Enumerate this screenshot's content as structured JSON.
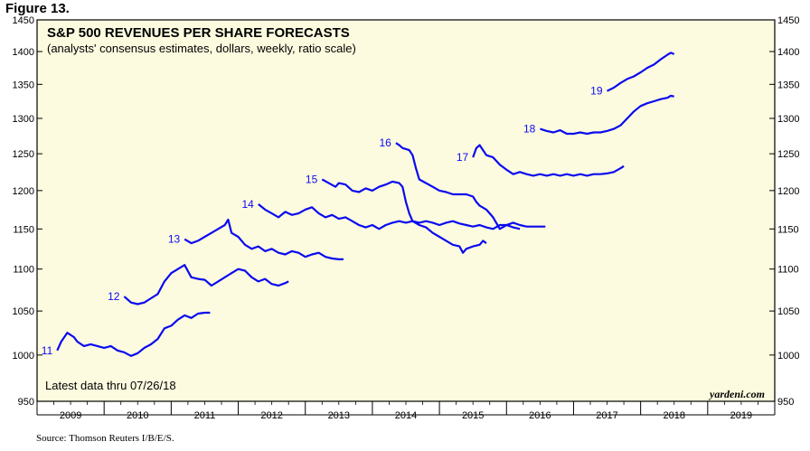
{
  "figure_label": "Figure 13.",
  "source": "Source: Thomson Reuters I/B/E/S.",
  "brand": "yardeni.com",
  "note": "Latest data thru 07/26/18",
  "colors": {
    "plot_background": "#fdfbdf",
    "series": "#0a0aef",
    "axis": "#000000"
  },
  "chart_data": {
    "type": "line",
    "title": "S&P 500 REVENUES PER SHARE FORECASTS",
    "subtitle": "(analysts' consensus estimates, dollars, weekly, ratio scale)",
    "ylim": [
      950,
      1450
    ],
    "y_scale": "log",
    "y_ticks": [
      950,
      1000,
      1050,
      1100,
      1150,
      1200,
      1250,
      1300,
      1350,
      1400,
      1450
    ],
    "x_ticks": [
      "2009",
      "2010",
      "2011",
      "2012",
      "2013",
      "2014",
      "2015",
      "2016",
      "2017",
      "2018",
      "2019"
    ],
    "xlim": [
      2009.0,
      2020.0
    ],
    "grid": false,
    "series": [
      {
        "name": "11",
        "points": [
          [
            2009.3,
            1005
          ],
          [
            2009.36,
            1015
          ],
          [
            2009.45,
            1025
          ],
          [
            2009.55,
            1020
          ],
          [
            2009.6,
            1015
          ],
          [
            2009.7,
            1010
          ],
          [
            2009.8,
            1012
          ],
          [
            2009.9,
            1010
          ],
          [
            2010.0,
            1008
          ],
          [
            2010.1,
            1010
          ],
          [
            2010.2,
            1005
          ],
          [
            2010.3,
            1003
          ],
          [
            2010.4,
            999
          ],
          [
            2010.5,
            1002
          ],
          [
            2010.6,
            1008
          ],
          [
            2010.7,
            1012
          ],
          [
            2010.8,
            1018
          ],
          [
            2010.9,
            1030
          ],
          [
            2011.0,
            1033
          ],
          [
            2011.1,
            1040
          ],
          [
            2011.2,
            1045
          ],
          [
            2011.3,
            1042
          ],
          [
            2011.4,
            1047
          ],
          [
            2011.5,
            1048
          ],
          [
            2011.58,
            1048
          ]
        ]
      },
      {
        "name": "12",
        "points": [
          [
            2010.3,
            1067
          ],
          [
            2010.4,
            1060
          ],
          [
            2010.5,
            1058
          ],
          [
            2010.6,
            1060
          ],
          [
            2010.7,
            1065
          ],
          [
            2010.8,
            1070
          ],
          [
            2010.9,
            1085
          ],
          [
            2011.0,
            1095
          ],
          [
            2011.1,
            1100
          ],
          [
            2011.2,
            1105
          ],
          [
            2011.3,
            1090
          ],
          [
            2011.4,
            1088
          ],
          [
            2011.5,
            1087
          ],
          [
            2011.6,
            1080
          ],
          [
            2011.7,
            1085
          ],
          [
            2011.8,
            1090
          ],
          [
            2011.9,
            1095
          ],
          [
            2012.0,
            1100
          ],
          [
            2012.1,
            1098
          ],
          [
            2012.2,
            1090
          ],
          [
            2012.3,
            1085
          ],
          [
            2012.4,
            1088
          ],
          [
            2012.5,
            1082
          ],
          [
            2012.6,
            1080
          ],
          [
            2012.7,
            1083
          ],
          [
            2012.75,
            1085
          ]
        ]
      },
      {
        "name": "13",
        "points": [
          [
            2011.2,
            1137
          ],
          [
            2011.3,
            1132
          ],
          [
            2011.4,
            1135
          ],
          [
            2011.5,
            1140
          ],
          [
            2011.6,
            1145
          ],
          [
            2011.7,
            1150
          ],
          [
            2011.8,
            1155
          ],
          [
            2011.85,
            1162
          ],
          [
            2011.9,
            1145
          ],
          [
            2012.0,
            1140
          ],
          [
            2012.1,
            1130
          ],
          [
            2012.2,
            1125
          ],
          [
            2012.3,
            1128
          ],
          [
            2012.4,
            1122
          ],
          [
            2012.5,
            1125
          ],
          [
            2012.6,
            1120
          ],
          [
            2012.7,
            1118
          ],
          [
            2012.8,
            1122
          ],
          [
            2012.9,
            1120
          ],
          [
            2013.0,
            1115
          ],
          [
            2013.1,
            1118
          ],
          [
            2013.2,
            1120
          ],
          [
            2013.3,
            1115
          ],
          [
            2013.4,
            1113
          ],
          [
            2013.5,
            1112
          ],
          [
            2013.57,
            1112
          ]
        ]
      },
      {
        "name": "14",
        "points": [
          [
            2012.3,
            1182
          ],
          [
            2012.4,
            1175
          ],
          [
            2012.5,
            1170
          ],
          [
            2012.6,
            1165
          ],
          [
            2012.7,
            1172
          ],
          [
            2012.8,
            1168
          ],
          [
            2012.9,
            1170
          ],
          [
            2013.0,
            1175
          ],
          [
            2013.1,
            1178
          ],
          [
            2013.2,
            1170
          ],
          [
            2013.3,
            1165
          ],
          [
            2013.4,
            1168
          ],
          [
            2013.5,
            1163
          ],
          [
            2013.6,
            1165
          ],
          [
            2013.7,
            1160
          ],
          [
            2013.8,
            1155
          ],
          [
            2013.9,
            1152
          ],
          [
            2014.0,
            1155
          ],
          [
            2014.1,
            1150
          ],
          [
            2014.2,
            1155
          ],
          [
            2014.3,
            1158
          ],
          [
            2014.4,
            1160
          ],
          [
            2014.5,
            1158
          ],
          [
            2014.6,
            1160
          ],
          [
            2014.7,
            1155
          ],
          [
            2014.8,
            1152
          ],
          [
            2014.9,
            1145
          ],
          [
            2015.0,
            1140
          ],
          [
            2015.1,
            1135
          ],
          [
            2015.2,
            1130
          ],
          [
            2015.3,
            1128
          ],
          [
            2015.35,
            1120
          ],
          [
            2015.4,
            1125
          ],
          [
            2015.5,
            1128
          ],
          [
            2015.6,
            1130
          ],
          [
            2015.65,
            1135
          ],
          [
            2015.7,
            1132
          ]
        ]
      },
      {
        "name": "15",
        "points": [
          [
            2013.25,
            1215
          ],
          [
            2013.35,
            1210
          ],
          [
            2013.45,
            1205
          ],
          [
            2013.5,
            1210
          ],
          [
            2013.6,
            1208
          ],
          [
            2013.7,
            1200
          ],
          [
            2013.8,
            1198
          ],
          [
            2013.9,
            1203
          ],
          [
            2014.0,
            1200
          ],
          [
            2014.1,
            1205
          ],
          [
            2014.2,
            1208
          ],
          [
            2014.3,
            1212
          ],
          [
            2014.4,
            1210
          ],
          [
            2014.45,
            1205
          ],
          [
            2014.5,
            1185
          ],
          [
            2014.55,
            1170
          ],
          [
            2014.6,
            1160
          ],
          [
            2014.7,
            1158
          ],
          [
            2014.8,
            1160
          ],
          [
            2014.9,
            1158
          ],
          [
            2015.0,
            1155
          ],
          [
            2015.1,
            1158
          ],
          [
            2015.2,
            1160
          ],
          [
            2015.3,
            1157
          ],
          [
            2015.4,
            1155
          ],
          [
            2015.5,
            1153
          ],
          [
            2015.6,
            1155
          ],
          [
            2015.7,
            1152
          ],
          [
            2015.8,
            1150
          ],
          [
            2015.9,
            1155
          ],
          [
            2016.0,
            1155
          ],
          [
            2016.1,
            1158
          ],
          [
            2016.2,
            1155
          ],
          [
            2016.3,
            1153
          ],
          [
            2016.4,
            1153
          ],
          [
            2016.5,
            1153
          ],
          [
            2016.58,
            1153
          ]
        ]
      },
      {
        "name": "16",
        "points": [
          [
            2014.35,
            1265
          ],
          [
            2014.4,
            1262
          ],
          [
            2014.45,
            1258
          ],
          [
            2014.55,
            1255
          ],
          [
            2014.6,
            1248
          ],
          [
            2014.65,
            1230
          ],
          [
            2014.7,
            1215
          ],
          [
            2014.8,
            1210
          ],
          [
            2014.9,
            1205
          ],
          [
            2015.0,
            1200
          ],
          [
            2015.1,
            1198
          ],
          [
            2015.2,
            1195
          ],
          [
            2015.3,
            1195
          ],
          [
            2015.4,
            1195
          ],
          [
            2015.5,
            1192
          ],
          [
            2015.55,
            1185
          ],
          [
            2015.6,
            1180
          ],
          [
            2015.7,
            1175
          ],
          [
            2015.75,
            1170
          ],
          [
            2015.8,
            1165
          ],
          [
            2015.9,
            1150
          ],
          [
            2016.0,
            1155
          ],
          [
            2016.1,
            1152
          ],
          [
            2016.2,
            1150
          ]
        ]
      },
      {
        "name": "17",
        "points": [
          [
            2015.5,
            1245
          ],
          [
            2015.55,
            1258
          ],
          [
            2015.6,
            1262
          ],
          [
            2015.65,
            1255
          ],
          [
            2015.7,
            1248
          ],
          [
            2015.8,
            1245
          ],
          [
            2015.85,
            1240
          ],
          [
            2015.9,
            1235
          ],
          [
            2016.0,
            1228
          ],
          [
            2016.1,
            1222
          ],
          [
            2016.2,
            1225
          ],
          [
            2016.3,
            1222
          ],
          [
            2016.4,
            1220
          ],
          [
            2016.5,
            1222
          ],
          [
            2016.6,
            1220
          ],
          [
            2016.7,
            1222
          ],
          [
            2016.8,
            1220
          ],
          [
            2016.9,
            1222
          ],
          [
            2017.0,
            1220
          ],
          [
            2017.1,
            1222
          ],
          [
            2017.2,
            1220
          ],
          [
            2017.3,
            1222
          ],
          [
            2017.4,
            1222
          ],
          [
            2017.5,
            1223
          ],
          [
            2017.6,
            1225
          ],
          [
            2017.7,
            1230
          ],
          [
            2017.75,
            1233
          ]
        ]
      },
      {
        "name": "18",
        "points": [
          [
            2016.5,
            1285
          ],
          [
            2016.6,
            1282
          ],
          [
            2016.7,
            1280
          ],
          [
            2016.8,
            1283
          ],
          [
            2016.9,
            1278
          ],
          [
            2017.0,
            1278
          ],
          [
            2017.1,
            1280
          ],
          [
            2017.2,
            1278
          ],
          [
            2017.3,
            1280
          ],
          [
            2017.4,
            1280
          ],
          [
            2017.5,
            1282
          ],
          [
            2017.6,
            1285
          ],
          [
            2017.7,
            1290
          ],
          [
            2017.8,
            1300
          ],
          [
            2017.9,
            1310
          ],
          [
            2018.0,
            1318
          ],
          [
            2018.1,
            1322
          ],
          [
            2018.2,
            1325
          ],
          [
            2018.3,
            1328
          ],
          [
            2018.4,
            1330
          ],
          [
            2018.45,
            1333
          ],
          [
            2018.5,
            1332
          ]
        ]
      },
      {
        "name": "19",
        "points": [
          [
            2017.5,
            1340
          ],
          [
            2017.6,
            1345
          ],
          [
            2017.7,
            1352
          ],
          [
            2017.8,
            1358
          ],
          [
            2017.9,
            1362
          ],
          [
            2018.0,
            1368
          ],
          [
            2018.1,
            1375
          ],
          [
            2018.2,
            1380
          ],
          [
            2018.3,
            1388
          ],
          [
            2018.4,
            1395
          ],
          [
            2018.45,
            1398
          ],
          [
            2018.5,
            1396
          ]
        ]
      }
    ]
  }
}
